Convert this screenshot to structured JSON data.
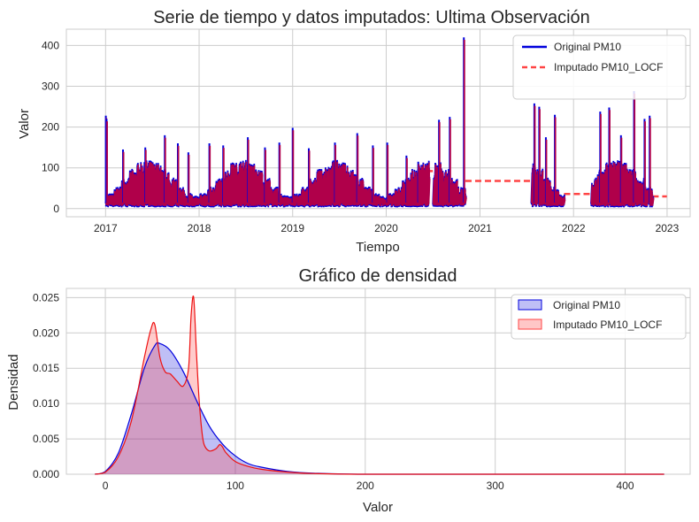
{
  "colors": {
    "original": "#0000dd",
    "imputado": "#ff4444",
    "overlay": "#b0004a",
    "grid": "#cccccc",
    "axes_bg": "#ffffff"
  },
  "chart_data": [
    {
      "type": "line",
      "title": "Serie de tiempo y datos imputados: Ultima Observación",
      "xlabel": "Tiempo",
      "ylabel": "Valor",
      "xlim": [
        "2016-08-01",
        "2023-04-01"
      ],
      "ylim": [
        -20,
        440
      ],
      "xticks": [
        "2017",
        "2018",
        "2019",
        "2020",
        "2021",
        "2022",
        "2023"
      ],
      "yticks": [
        0,
        100,
        200,
        300,
        400
      ],
      "grid": true,
      "legend_position": "top-right",
      "series": [
        {
          "name": "Original PM10",
          "style": "solid"
        },
        {
          "name": "Imputado PM10_LOCF",
          "style": "dashed"
        }
      ],
      "observed_segments": [
        {
          "start": "2017-01-01",
          "end": "2020-06-15"
        },
        {
          "start": "2020-07-01",
          "end": "2020-11-05"
        },
        {
          "start": "2021-07-20",
          "end": "2021-11-25"
        },
        {
          "start": "2022-03-10",
          "end": "2022-11-05"
        }
      ],
      "typical_range": [
        10,
        120
      ],
      "peaks": [
        {
          "x": "2017-01-02",
          "y": 228
        },
        {
          "x": "2017-01-05",
          "y": 220
        },
        {
          "x": "2017-03-10",
          "y": 145
        },
        {
          "x": "2017-06-05",
          "y": 150
        },
        {
          "x": "2017-08-20",
          "y": 180
        },
        {
          "x": "2017-10-10",
          "y": 160
        },
        {
          "x": "2017-11-20",
          "y": 138
        },
        {
          "x": "2018-02-10",
          "y": 160
        },
        {
          "x": "2018-04-05",
          "y": 155
        },
        {
          "x": "2018-07-10",
          "y": 175
        },
        {
          "x": "2018-09-15",
          "y": 150
        },
        {
          "x": "2018-11-10",
          "y": 162
        },
        {
          "x": "2019-01-01",
          "y": 198
        },
        {
          "x": "2019-03-05",
          "y": 148
        },
        {
          "x": "2019-06-15",
          "y": 162
        },
        {
          "x": "2019-09-10",
          "y": 185
        },
        {
          "x": "2019-11-10",
          "y": 155
        },
        {
          "x": "2020-01-05",
          "y": 162
        },
        {
          "x": "2020-03-20",
          "y": 130
        },
        {
          "x": "2020-05-05",
          "y": 115
        },
        {
          "x": "2020-07-25",
          "y": 218
        },
        {
          "x": "2020-09-05",
          "y": 225
        },
        {
          "x": "2020-10-30",
          "y": 420
        },
        {
          "x": "2021-08-01",
          "y": 258
        },
        {
          "x": "2021-08-20",
          "y": 250
        },
        {
          "x": "2021-09-15",
          "y": 175
        },
        {
          "x": "2021-10-20",
          "y": 230
        },
        {
          "x": "2022-04-15",
          "y": 238
        },
        {
          "x": "2022-05-20",
          "y": 248
        },
        {
          "x": "2022-07-05",
          "y": 180
        },
        {
          "x": "2022-08-25",
          "y": 288
        },
        {
          "x": "2022-10-05",
          "y": 220
        },
        {
          "x": "2022-10-25",
          "y": 228
        }
      ],
      "locf_gap_fill": [
        {
          "start": "2020-06-15",
          "end": "2020-07-01",
          "y": 92
        },
        {
          "start": "2020-11-05",
          "end": "2021-07-20",
          "y": 68
        },
        {
          "start": "2021-11-25",
          "end": "2022-03-10",
          "y": 36
        },
        {
          "start": "2022-11-05",
          "end": "2022-12-31",
          "y": 30
        }
      ]
    },
    {
      "type": "area",
      "title": "Gráfico de densidad",
      "xlabel": "Valor",
      "ylabel": "Densidad",
      "xlim": [
        -30,
        450
      ],
      "ylim": [
        0,
        0.0263
      ],
      "xticks": [
        0,
        100,
        200,
        300,
        400
      ],
      "yticks": [
        "0.000",
        "0.005",
        "0.010",
        "0.015",
        "0.020",
        "0.025"
      ],
      "grid": true,
      "legend_position": "top-right",
      "series": [
        {
          "name": "Original PM10",
          "x": [
            -8,
            0,
            10,
            20,
            30,
            38,
            42,
            50,
            60,
            70,
            80,
            90,
            100,
            110,
            120,
            140,
            160,
            200,
            300,
            430
          ],
          "y": [
            0.0,
            0.0004,
            0.003,
            0.0085,
            0.015,
            0.0182,
            0.0185,
            0.0175,
            0.0145,
            0.0105,
            0.0068,
            0.0043,
            0.0026,
            0.0015,
            0.001,
            0.0004,
            0.00015,
            0.0,
            0.0,
            0.0
          ]
        },
        {
          "name": "Imputado PM10_LOCF",
          "x": [
            -8,
            0,
            10,
            20,
            30,
            35,
            38,
            42,
            46,
            50,
            55,
            60,
            64,
            66,
            68,
            70,
            72,
            74,
            76,
            80,
            85,
            88,
            90,
            93,
            100,
            110,
            120,
            140,
            160,
            200,
            300,
            430
          ],
          "y": [
            0.0,
            0.0003,
            0.0025,
            0.0075,
            0.0165,
            0.0205,
            0.0212,
            0.0165,
            0.0145,
            0.0142,
            0.0132,
            0.0125,
            0.015,
            0.0225,
            0.025,
            0.0175,
            0.011,
            0.0065,
            0.0042,
            0.0033,
            0.0036,
            0.0042,
            0.0039,
            0.003,
            0.0018,
            0.0011,
            0.0007,
            0.0003,
            0.0001,
            0.0,
            0.0,
            0.0
          ]
        }
      ]
    }
  ]
}
